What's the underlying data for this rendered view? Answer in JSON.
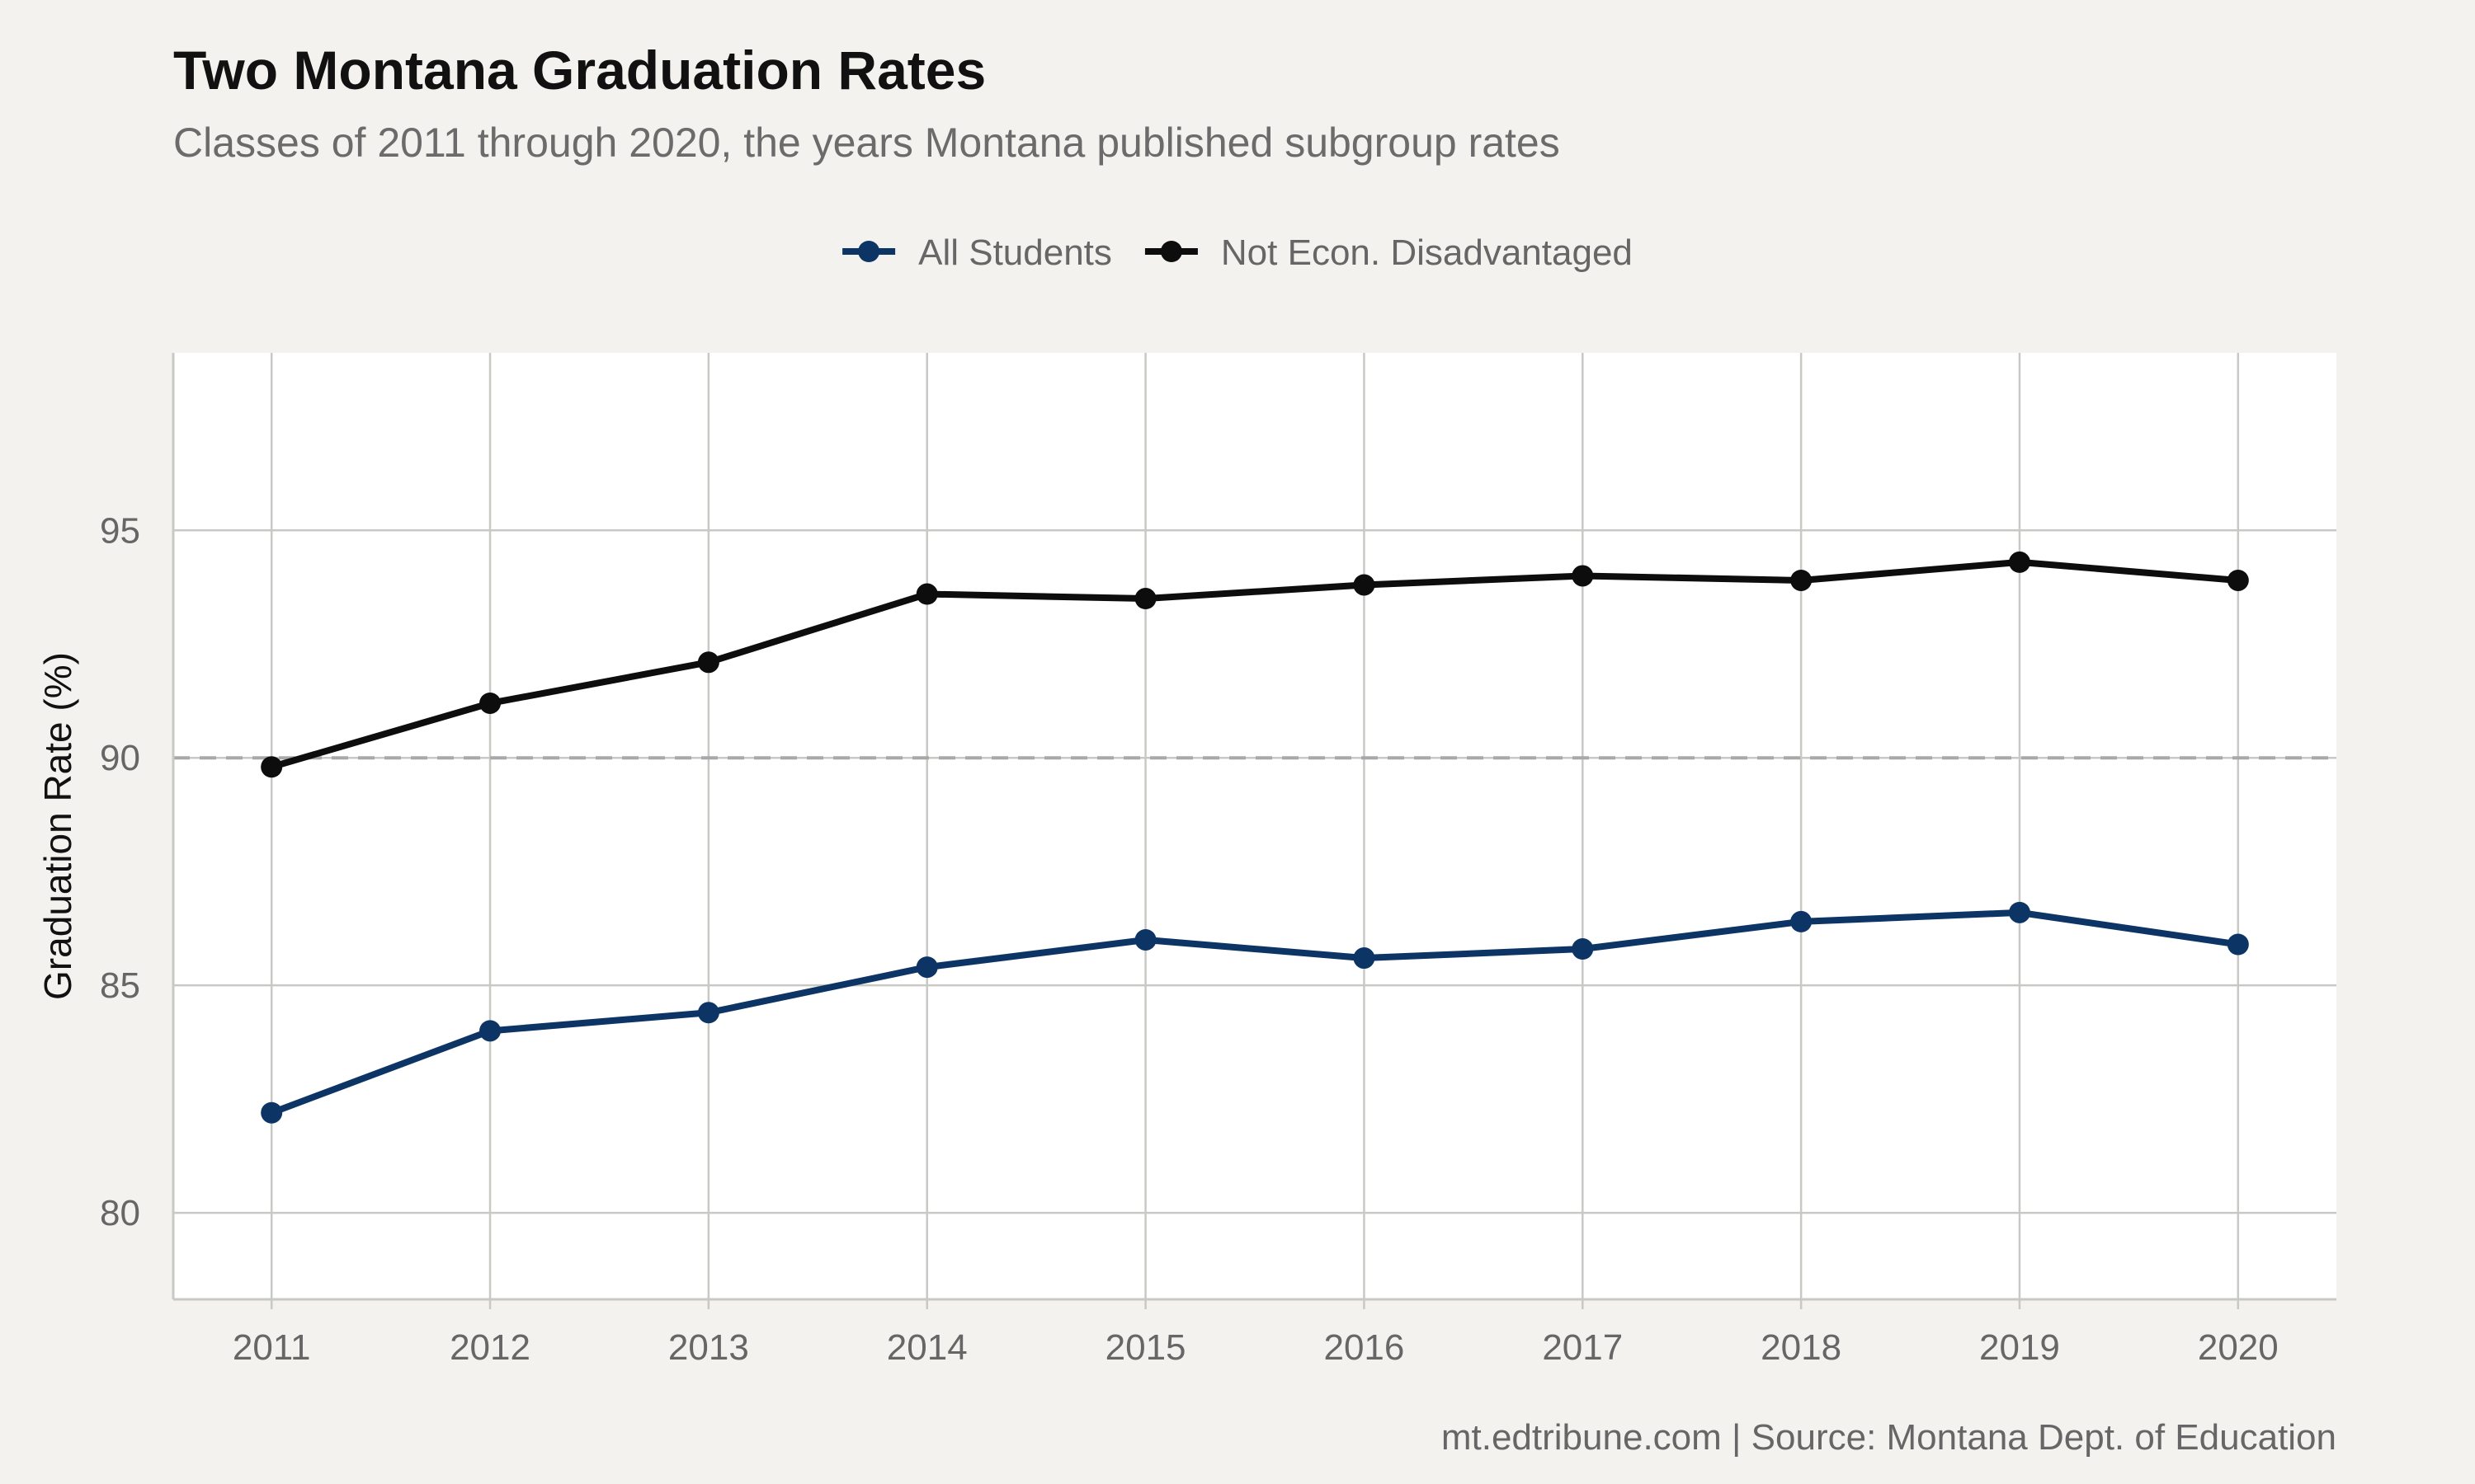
{
  "title": "Two Montana Graduation Rates",
  "subtitle": "Classes of 2011 through 2020, the years Montana published subgroup rates",
  "caption": "mt.edtribune.com | Source: Montana Dept. of Education",
  "colors": {
    "background": "#f4f2ee",
    "panel": "#ffffff",
    "all_students": "#0c3566",
    "not_econ_disadvantaged": "#0d0d0d",
    "reference_line": "#a8a8a8"
  },
  "chart_data": {
    "type": "line",
    "title": "Two Montana Graduation Rates",
    "subtitle": "Classes of 2011 through 2020, the years Montana published subgroup rates",
    "xlabel": "",
    "ylabel": "Graduation Rate (%)",
    "x": [
      2011,
      2012,
      2013,
      2014,
      2015,
      2016,
      2017,
      2018,
      2019,
      2020
    ],
    "x_tick_labels": [
      "2011",
      "2012",
      "2013",
      "2014",
      "2015",
      "2016",
      "2017",
      "2018",
      "2019",
      "2020"
    ],
    "y_ticks": [
      80,
      85,
      90,
      95
    ],
    "y_tick_labels": [
      "80",
      "85",
      "90",
      "95"
    ],
    "ylim": [
      78.1,
      98.9
    ],
    "xlim": [
      2010.55,
      2020.45
    ],
    "reference_line": {
      "y": 90,
      "style": "dashed"
    },
    "grid": true,
    "legend_position": "top",
    "series": [
      {
        "name": "All Students",
        "color": "#0c3566",
        "values": [
          82.2,
          84.0,
          84.4,
          85.4,
          86.0,
          85.6,
          85.8,
          86.4,
          86.6,
          85.9
        ]
      },
      {
        "name": "Not Econ. Disadvantaged",
        "color": "#0d0d0d",
        "values": [
          89.8,
          91.2,
          92.1,
          93.6,
          93.5,
          93.8,
          94.0,
          93.9,
          94.3,
          93.9
        ]
      }
    ]
  }
}
